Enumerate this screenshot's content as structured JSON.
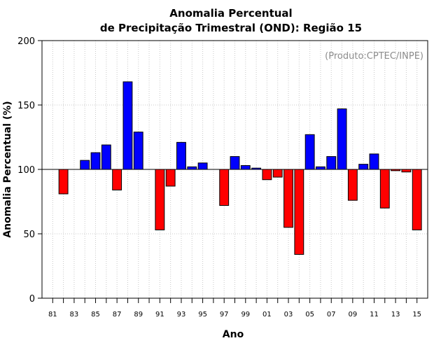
{
  "chart_data": {
    "type": "bar",
    "title_line1": "Anomalia Percentual",
    "title_line2": "de Precipitação Trimestral (OND): Região 15",
    "xlabel": "Ano",
    "ylabel": "Anomalia Percentual (%)",
    "credit": "(Produto:CPTEC/INPE)",
    "ylim": [
      0,
      200
    ],
    "yticks": [
      0,
      50,
      100,
      150,
      200
    ],
    "baseline": 100,
    "grid": true,
    "x_range": [
      1980,
      2016
    ],
    "years": [
      1981,
      1982,
      1983,
      1984,
      1985,
      1986,
      1987,
      1988,
      1989,
      1990,
      1991,
      1992,
      1993,
      1994,
      1995,
      1996,
      1997,
      1998,
      1999,
      2000,
      2001,
      2002,
      2003,
      2004,
      2005,
      2006,
      2007,
      2008,
      2009,
      2010,
      2011,
      2012,
      2013,
      2014,
      2015
    ],
    "tick_labels": [
      "81",
      "83",
      "85",
      "87",
      "89",
      "91",
      "93",
      "95",
      "97",
      "99",
      "01",
      "03",
      "05",
      "07",
      "09",
      "11",
      "13",
      "15"
    ],
    "tick_years": [
      1981,
      1983,
      1985,
      1987,
      1989,
      1991,
      1993,
      1995,
      1997,
      1999,
      2001,
      2003,
      2005,
      2007,
      2009,
      2011,
      2013,
      2015
    ],
    "values": [
      null,
      81,
      null,
      107,
      113,
      119,
      84,
      168,
      129,
      null,
      53,
      87,
      121,
      102,
      105,
      null,
      72,
      110,
      103,
      101,
      92,
      94,
      55,
      34,
      127,
      102,
      110,
      147,
      76,
      104,
      112,
      70,
      99,
      98,
      53
    ],
    "colors": {
      "above": "#0000ff",
      "below": "#ff0000"
    }
  }
}
